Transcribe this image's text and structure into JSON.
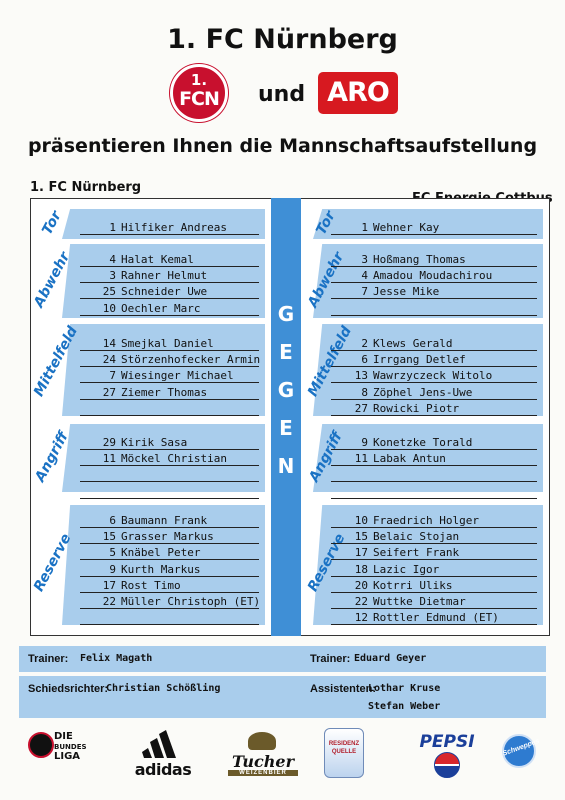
{
  "header": {
    "title": "1. FC Nürnberg",
    "conjunction": "und",
    "subtitle": "präsentieren Ihnen die Mannschaftsaufstellung",
    "fcn_logo_line1": "1.",
    "fcn_logo_line2": "FCN",
    "aro_logo": "ARO"
  },
  "teams": {
    "home": "1. FC Nürnberg",
    "away": "FC Energie Cottbus",
    "versus": [
      "G",
      "E",
      "G",
      "E",
      "N"
    ]
  },
  "sections": {
    "tor": "Tor",
    "abwehr": "Abwehr",
    "mittelfeld": "Mittelfeld",
    "angriff": "Angriff",
    "reserve": "Reserve"
  },
  "home": {
    "tor": [
      {
        "num": "1",
        "name": "Hilfiker Andreas"
      }
    ],
    "abwehr": [
      {
        "num": "4",
        "name": "Halat Kemal"
      },
      {
        "num": "3",
        "name": "Rahner Helmut"
      },
      {
        "num": "25",
        "name": "Schneider Uwe"
      },
      {
        "num": "10",
        "name": "Oechler Marc"
      }
    ],
    "mittelfeld": [
      {
        "num": "14",
        "name": "Smejkal Daniel"
      },
      {
        "num": "24",
        "name": "Störzenhofecker Armin"
      },
      {
        "num": "7",
        "name": "Wiesinger Michael"
      },
      {
        "num": "27",
        "name": "Ziemer Thomas"
      }
    ],
    "angriff": [
      {
        "num": "29",
        "name": "Kirik Sasa"
      },
      {
        "num": "11",
        "name": "Möckel Christian"
      }
    ],
    "reserve": [
      {
        "num": "6",
        "name": "Baumann Frank"
      },
      {
        "num": "15",
        "name": "Grasser Markus"
      },
      {
        "num": "5",
        "name": "Knäbel Peter"
      },
      {
        "num": "9",
        "name": "Kurth Markus"
      },
      {
        "num": "17",
        "name": "Rost Timo"
      },
      {
        "num": "22",
        "name": "Müller Christoph (ET)"
      }
    ]
  },
  "away": {
    "tor": [
      {
        "num": "1",
        "name": "Wehner Kay"
      }
    ],
    "abwehr": [
      {
        "num": "3",
        "name": "Hoßmang Thomas"
      },
      {
        "num": "4",
        "name": "Amadou Moudachirou"
      },
      {
        "num": "7",
        "name": "Jesse Mike"
      }
    ],
    "mittelfeld": [
      {
        "num": "2",
        "name": "Klews Gerald"
      },
      {
        "num": "6",
        "name": "Irrgang Detlef"
      },
      {
        "num": "13",
        "name": "Wawrzyczeck Witolo"
      },
      {
        "num": "8",
        "name": "Zöphel Jens-Uwe"
      },
      {
        "num": "27",
        "name": "Rowicki Piotr"
      }
    ],
    "angriff": [
      {
        "num": "9",
        "name": "Konetzke Torald"
      },
      {
        "num": "11",
        "name": "Labak Antun"
      }
    ],
    "reserve": [
      {
        "num": "10",
        "name": "Fraedrich Holger"
      },
      {
        "num": "15",
        "name": "Belaic Stojan"
      },
      {
        "num": "17",
        "name": "Seifert Frank"
      },
      {
        "num": "18",
        "name": "Lazic Igor"
      },
      {
        "num": "20",
        "name": "Kotrri Uliks"
      },
      {
        "num": "22",
        "name": "Wuttke Dietmar"
      },
      {
        "num": "12",
        "name": "Rottler Edmund (ET)"
      }
    ]
  },
  "officials": {
    "trainer_label": "Trainer:",
    "home_trainer": "Felix Magath",
    "away_trainer": "Eduard Geyer",
    "referee_label": "Schiedsrichter:",
    "referee": "Christian Schößling",
    "assistants_label": "Assistenten:",
    "assistant_1": "Lothar Kruse",
    "assistant_2": "Stefan Weber"
  },
  "sponsors": {
    "dbl_line1": "DIE",
    "dbl_line2": "BUNDES",
    "dbl_line3": "LIGA",
    "adidas": "adidas",
    "tucher": "Tucher",
    "tucher_sub": "WEIZENBIER",
    "residenz_line1": "RESIDENZ",
    "residenz_line2": "QUELLE",
    "pepsi": "PEPSI",
    "schweppes": "Schweppes"
  },
  "colors": {
    "panel_blue": "#a9cdec",
    "gegen_blue": "#3f8fd6",
    "label_blue": "#1a72c4",
    "fcn_red": "#c8102e",
    "aro_red": "#d71920"
  }
}
